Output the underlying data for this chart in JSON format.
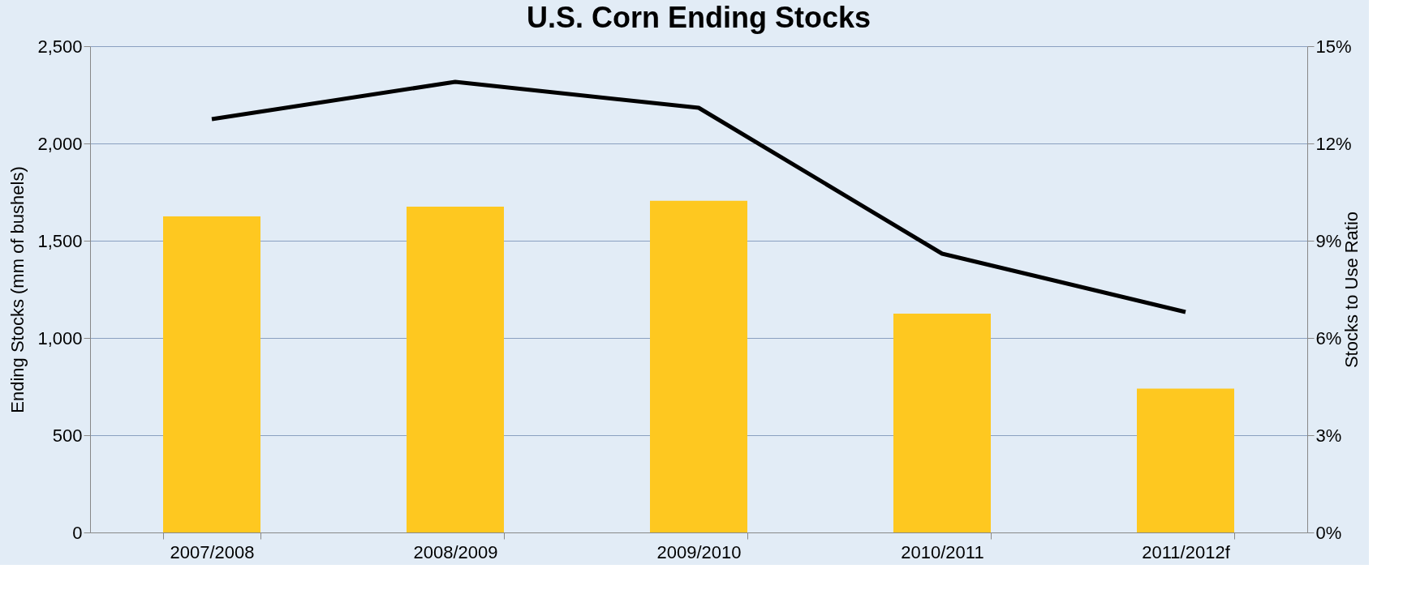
{
  "chart_data": {
    "type": "bar",
    "title": "U.S. Corn Ending Stocks",
    "ylabel": "Ending Stocks (mm of bushels)",
    "y2label": "Stocks to Use Ratio",
    "categories": [
      "2007/2008",
      "2008/2009",
      "2009/2010",
      "2010/2011",
      "2011/2012f"
    ],
    "series": [
      {
        "color": "#fec820",
        "values": [
          1625,
          1675,
          1705,
          1125,
          740
        ]
      },
      {
        "type": "line",
        "axis": "y2",
        "color": "#000000",
        "values": [
          12.75,
          13.9,
          13.1,
          8.6,
          6.8
        ]
      }
    ],
    "ylim": [
      0,
      2500
    ],
    "yticks": [
      {
        "value": 0,
        "label": "0"
      },
      {
        "value": 500,
        "label": "500"
      },
      {
        "value": 1000,
        "label": "1,000"
      },
      {
        "value": 1500,
        "label": "1,500"
      },
      {
        "value": 2000,
        "label": "2,000"
      },
      {
        "value": 2500,
        "label": "2,500"
      }
    ],
    "y2lim": [
      0,
      15
    ],
    "y2ticks": [
      {
        "value": 0,
        "label": "0%"
      },
      {
        "value": 3,
        "label": "3%"
      },
      {
        "value": 6,
        "label": "6%"
      },
      {
        "value": 9,
        "label": "9%"
      },
      {
        "value": 12,
        "label": "12%"
      },
      {
        "value": 15,
        "label": "15%"
      }
    ],
    "grid": "y",
    "marker": "none",
    "line_style": "solid"
  }
}
